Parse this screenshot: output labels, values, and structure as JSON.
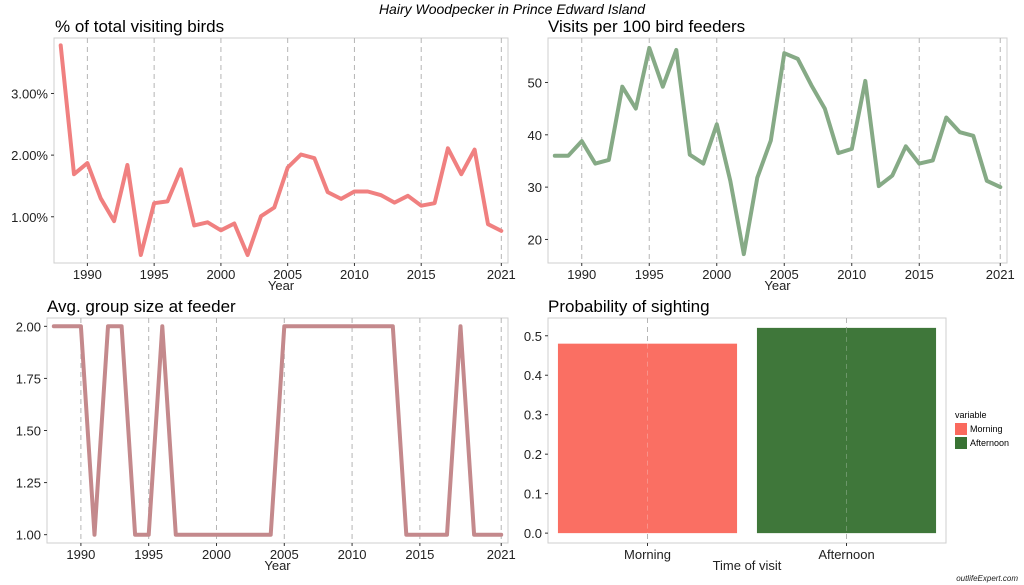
{
  "suptitle": "Hairy Woodpecker in Prince Edward Island",
  "watermark": "outlifeExpert.com",
  "chart_data": [
    {
      "type": "line",
      "title": "% of total visiting birds",
      "xlabel": "Year",
      "ylabel": "",
      "color": "#f08080",
      "xlim": [
        1987.5,
        2021.5
      ],
      "ylim": [
        0.25,
        3.9
      ],
      "xticks": [
        1990,
        1995,
        2000,
        2005,
        2010,
        2015,
        2021
      ],
      "yticks": [
        1.0,
        2.0,
        3.0
      ],
      "ytick_labels": [
        "1.00%",
        "2.00%",
        "3.00%"
      ],
      "grid": "vertical dashed",
      "x": [
        1988,
        1989,
        1990,
        1991,
        1992,
        1993,
        1994,
        1995,
        1996,
        1997,
        1998,
        1999,
        2000,
        2001,
        2002,
        2003,
        2004,
        2005,
        2006,
        2007,
        2008,
        2009,
        2010,
        2011,
        2012,
        2013,
        2014,
        2015,
        2016,
        2017,
        2018,
        2019,
        2020,
        2021
      ],
      "y": [
        3.78,
        1.69,
        1.87,
        1.3,
        0.93,
        1.84,
        0.38,
        1.22,
        1.25,
        1.77,
        0.86,
        0.91,
        0.78,
        0.89,
        0.38,
        1.01,
        1.15,
        1.8,
        2.01,
        1.95,
        1.4,
        1.29,
        1.41,
        1.41,
        1.35,
        1.23,
        1.34,
        1.18,
        1.22,
        2.11,
        1.69,
        2.09,
        0.88,
        0.77
      ]
    },
    {
      "type": "line",
      "title": "Visits per 100 bird feeders",
      "xlabel": "Year",
      "ylabel": "",
      "color": "#86aa86",
      "xlim": [
        1987.5,
        2021.5
      ],
      "ylim": [
        15.5,
        58.5
      ],
      "xticks": [
        1990,
        1995,
        2000,
        2005,
        2010,
        2015,
        2021
      ],
      "yticks": [
        20,
        30,
        40,
        50
      ],
      "ytick_labels": [
        "20",
        "30",
        "40",
        "50"
      ],
      "grid": "vertical dashed",
      "x": [
        1988,
        1989,
        1990,
        1991,
        1992,
        1993,
        1994,
        1995,
        1996,
        1997,
        1998,
        1999,
        2000,
        2001,
        2002,
        2003,
        2004,
        2005,
        2006,
        2007,
        2008,
        2009,
        2010,
        2011,
        2012,
        2013,
        2014,
        2015,
        2016,
        2017,
        2018,
        2019,
        2020,
        2021
      ],
      "y": [
        36,
        36,
        38.8,
        34.5,
        35.2,
        49.2,
        45,
        56.6,
        49.2,
        56.2,
        36.2,
        34.5,
        42,
        31.2,
        17.2,
        31.8,
        38.9,
        55.6,
        54.5,
        49.5,
        45,
        36.5,
        37.3,
        50.3,
        30.2,
        32.2,
        37.8,
        34.5,
        35.1,
        43.3,
        40.5,
        39.8,
        31.2,
        30
      ]
    },
    {
      "type": "line",
      "title": "Avg. group size at feeder",
      "xlabel": "Year",
      "ylabel": "",
      "color": "#c4898c",
      "xlim": [
        1987.5,
        2021.5
      ],
      "ylim": [
        0.96,
        2.04
      ],
      "xticks": [
        1990,
        1995,
        2000,
        2005,
        2010,
        2015,
        2021
      ],
      "yticks": [
        1.0,
        1.25,
        1.5,
        1.75,
        2.0
      ],
      "ytick_labels": [
        "1.00",
        "1.25",
        "1.50",
        "1.75",
        "2.00"
      ],
      "grid": "vertical dashed",
      "x": [
        1988,
        1989,
        1990,
        1991,
        1992,
        1993,
        1994,
        1995,
        1996,
        1997,
        1998,
        1999,
        2000,
        2001,
        2002,
        2003,
        2004,
        2005,
        2006,
        2007,
        2008,
        2009,
        2010,
        2011,
        2012,
        2013,
        2014,
        2015,
        2016,
        2017,
        2018,
        2019,
        2020,
        2021
      ],
      "y": [
        2,
        2,
        2,
        1,
        2,
        2,
        1,
        1,
        2,
        1,
        1,
        1,
        1,
        1,
        1,
        1,
        1,
        2,
        2,
        2,
        2,
        2,
        2,
        2,
        2,
        2,
        1,
        1,
        1,
        1,
        2,
        1,
        1,
        1
      ]
    },
    {
      "type": "bar",
      "title": "Probability of sighting",
      "xlabel": "Time of visit",
      "ylabel": "",
      "categories": [
        "Morning",
        "Afternoon"
      ],
      "values": [
        0.48,
        0.52
      ],
      "colors": [
        "#fa6a5e",
        "#397334"
      ],
      "ylim": [
        -0.025,
        0.545
      ],
      "yticks": [
        0.0,
        0.1,
        0.2,
        0.3,
        0.4,
        0.5
      ],
      "ytick_labels": [
        "0.0",
        "0.1",
        "0.2",
        "0.3",
        "0.4",
        "0.5"
      ],
      "grid": "vertical dashed",
      "legend": {
        "title": "variable",
        "position": "right",
        "entries": [
          {
            "label": "Morning",
            "color": "#fa6a5e"
          },
          {
            "label": "Afternoon",
            "color": "#397334"
          }
        ]
      }
    }
  ]
}
